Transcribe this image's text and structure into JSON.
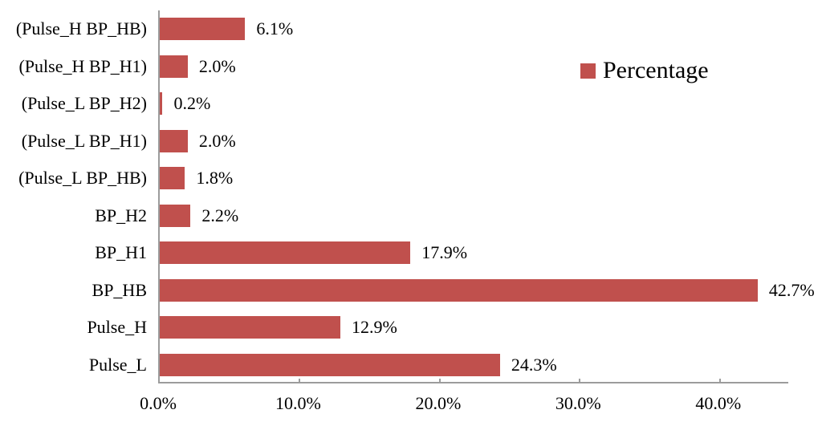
{
  "chart_data": {
    "type": "bar",
    "orientation": "horizontal",
    "title": "",
    "xlabel": "",
    "ylabel": "",
    "categories": [
      "(Pulse_H BP_HB)",
      "(Pulse_H BP_H1)",
      "(Pulse_L BP_H2)",
      "(Pulse_L BP_H1)",
      "(Pulse_L BP_HB)",
      "BP_H2",
      "BP_H1",
      "BP_HB",
      "Pulse_H",
      "Pulse_L"
    ],
    "values": [
      6.1,
      2.0,
      0.2,
      2.0,
      1.8,
      2.2,
      17.9,
      42.7,
      12.9,
      24.3
    ],
    "value_labels": [
      "6.1%",
      "2.0%",
      "0.2%",
      "2.0%",
      "1.8%",
      "2.2%",
      "17.9%",
      "42.7%",
      "12.9%",
      "24.3%"
    ],
    "series_name": "Percentage",
    "x_tick_labels": [
      "0.0%",
      "10.0%",
      "20.0%",
      "30.0%",
      "40.0%"
    ],
    "x_tick_values": [
      0,
      10,
      20,
      30,
      40
    ],
    "xlim": [
      0,
      45
    ],
    "grid": false,
    "legend_position": "upper-right",
    "bar_color": "#C0504D",
    "axis_color": "#9C9C9C",
    "text_color": "#000000"
  }
}
